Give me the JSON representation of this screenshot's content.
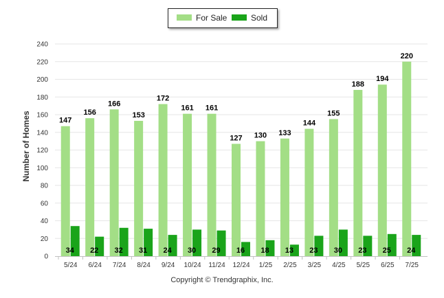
{
  "legend": {
    "items": [
      {
        "label": "For Sale",
        "color": "#a3de86"
      },
      {
        "label": "Sold",
        "color": "#1aa41a"
      }
    ]
  },
  "copyright": "Copyright © Trendgraphix, Inc.",
  "chart_data": {
    "type": "bar",
    "title": "",
    "xlabel": "",
    "ylabel": "Number of Homes",
    "ylim": [
      0,
      240
    ],
    "yticks": [
      0,
      20,
      40,
      60,
      80,
      100,
      120,
      140,
      160,
      180,
      200,
      220,
      240
    ],
    "grid": true,
    "legend_position": "top-center",
    "categories": [
      "5/24",
      "6/24",
      "7/24",
      "8/24",
      "9/24",
      "10/24",
      "11/24",
      "12/24",
      "1/25",
      "2/25",
      "3/25",
      "4/25",
      "5/25",
      "6/25",
      "7/25"
    ],
    "series": [
      {
        "name": "For Sale",
        "color": "#a3de86",
        "values": [
          147,
          156,
          166,
          153,
          172,
          161,
          161,
          127,
          130,
          133,
          144,
          155,
          188,
          194,
          220
        ]
      },
      {
        "name": "Sold",
        "color": "#1aa41a",
        "values": [
          34,
          22,
          32,
          31,
          24,
          30,
          29,
          16,
          18,
          13,
          23,
          30,
          23,
          25,
          24
        ]
      }
    ]
  }
}
